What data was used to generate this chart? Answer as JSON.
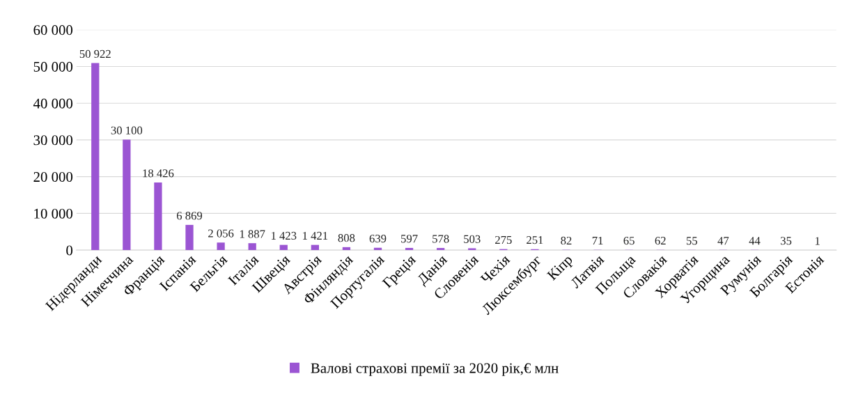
{
  "chart_data": {
    "type": "bar",
    "categories": [
      "Нідерланди",
      "Німеччина",
      "Франція",
      "Іспанія",
      "Бельгія",
      "Італія",
      "Швеція",
      "Австрія",
      "Фінляндія",
      "Португалія",
      "Греція",
      "Данія",
      "Словенія",
      "Чехія",
      "Люксембург",
      "Кіпр",
      "Латвія",
      "Польща",
      "Словакія",
      "Хорватія",
      "Угорщина",
      "Румунія",
      "Болгарія",
      "Естонія"
    ],
    "series": [
      {
        "name": "Валові страхові премії за 2020 рік,€ млн",
        "color": "#9b55d3",
        "values": [
          50922,
          30100,
          18426,
          6869,
          2056,
          1887,
          1423,
          1421,
          808,
          639,
          597,
          578,
          503,
          275,
          251,
          82,
          71,
          65,
          62,
          55,
          47,
          44,
          35,
          1
        ],
        "value_labels": [
          "50 922",
          "30 100",
          "18 426",
          "6 869",
          "2 056",
          "1 887",
          "1 423",
          "1 421",
          "808",
          "639",
          "597",
          "578",
          "503",
          "275",
          "251",
          "82",
          "71",
          "65",
          "62",
          "55",
          "47",
          "44",
          "35",
          "1"
        ]
      }
    ],
    "ylim": [
      0,
      60000
    ],
    "yticks": [
      0,
      {
        "value": 10000,
        "label": "10 000"
      },
      {
        "value": 20000,
        "label": "20 000"
      },
      {
        "value": 30000,
        "label": "30 000"
      },
      {
        "value": 40000,
        "label": "40 000"
      },
      {
        "value": 50000,
        "label": "50 000"
      },
      {
        "value": 60000,
        "label": "60 000"
      }
    ],
    "grid": "y",
    "legend": "bottom"
  }
}
